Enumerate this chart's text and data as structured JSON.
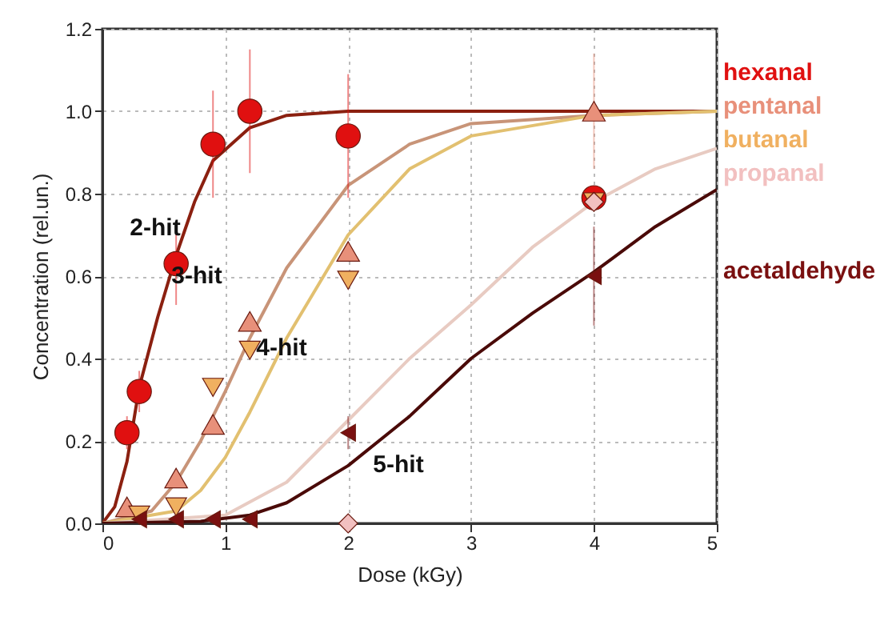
{
  "chart_data": {
    "type": "scatter",
    "xlabel": "Dose (kGy)",
    "ylabel": "Concentration (rel.un.)",
    "xlim": [
      0,
      5
    ],
    "ylim": [
      0,
      1.2
    ],
    "xticks": [
      0,
      1,
      2,
      3,
      4,
      5
    ],
    "yticks": [
      {
        "value": 0,
        "label": "0.0"
      },
      {
        "value": 0.2,
        "label": "0.2"
      },
      {
        "value": 0.4,
        "label": "0.4"
      },
      {
        "value": 0.6,
        "label": "0.6"
      },
      {
        "value": 0.8,
        "label": "0.8"
      },
      {
        "value": 1,
        "label": "1.0"
      },
      {
        "value": 1.2,
        "label": "1.2"
      }
    ],
    "grid": true,
    "annotations": [
      "2-hit",
      "3-hit",
      "4-hit",
      "5-hit"
    ],
    "series": [
      {
        "type": "line",
        "color": "#8b2010",
        "x": [
          0,
          0.1,
          0.2,
          0.3,
          0.45,
          0.6,
          0.75,
          0.9,
          1.2,
          1.5,
          2,
          3,
          5
        ],
        "values": [
          0,
          0.04,
          0.15,
          0.33,
          0.5,
          0.65,
          0.78,
          0.88,
          0.96,
          0.99,
          1,
          1,
          1
        ]
      },
      {
        "type": "line",
        "color": "#c89478",
        "x": [
          0,
          0.4,
          0.6,
          0.8,
          1,
          1.2,
          1.5,
          2,
          2.5,
          3,
          4,
          5
        ],
        "values": [
          0,
          0.03,
          0.1,
          0.2,
          0.32,
          0.45,
          0.62,
          0.82,
          0.92,
          0.97,
          0.99,
          1
        ]
      },
      {
        "type": "line",
        "color": "#e2c070",
        "x": [
          0,
          0.6,
          0.8,
          1,
          1.2,
          1.5,
          2,
          2.5,
          3,
          4,
          5
        ],
        "values": [
          0,
          0.03,
          0.08,
          0.16,
          0.27,
          0.45,
          0.7,
          0.86,
          0.94,
          0.99,
          1
        ]
      },
      {
        "type": "line",
        "color": "#e8cbc2",
        "x": [
          0,
          1,
          1.5,
          2,
          2.5,
          3,
          3.5,
          4,
          4.5,
          5
        ],
        "values": [
          0,
          0.02,
          0.1,
          0.25,
          0.4,
          0.53,
          0.67,
          0.78,
          0.86,
          0.91
        ]
      },
      {
        "type": "line",
        "color": "#4a0a08",
        "x": [
          0,
          0.8,
          1.2,
          1.5,
          2,
          2.5,
          3,
          3.5,
          4,
          4.5,
          5
        ],
        "values": [
          0,
          0.005,
          0.02,
          0.05,
          0.14,
          0.26,
          0.4,
          0.51,
          0.61,
          0.72,
          0.81
        ]
      },
      {
        "name": "hexanal",
        "color": "#e01010",
        "marker": "circle",
        "x": [
          0.2,
          0.3,
          0.6,
          0.9,
          1.2,
          2,
          4
        ],
        "values": [
          0.22,
          0.32,
          0.63,
          0.92,
          1,
          0.94,
          0.79
        ],
        "errors": [
          [
            0.18,
            0.26
          ],
          [
            0.27,
            0.37
          ],
          [
            0.53,
            0.73
          ],
          [
            0.79,
            1.05
          ],
          [
            0.85,
            1.15
          ],
          [
            0.79,
            1.09
          ],
          null
        ]
      },
      {
        "name": "pentanal",
        "color": "#e8907a",
        "marker": "triangle",
        "x": [
          0.2,
          0.6,
          0.9,
          1.2,
          2,
          4
        ],
        "values": [
          0.04,
          0.11,
          0.24,
          0.49,
          0.66,
          1
        ],
        "errors": [
          null,
          null,
          null,
          null,
          null,
          [
            0.86,
            1.14
          ]
        ]
      },
      {
        "name": "butanal",
        "color": "#f0b060",
        "marker": "triangle-down",
        "x": [
          0.3,
          0.6,
          0.9,
          1.2,
          2,
          4
        ],
        "values": [
          0.02,
          0.04,
          0.33,
          0.42,
          0.59,
          0.78
        ]
      },
      {
        "name": "propanal",
        "color": "#f2c0c0",
        "marker": "diamond",
        "x": [
          2,
          4
        ],
        "values": [
          0,
          0.78
        ]
      },
      {
        "name": "acetaldehyde",
        "color": "#7a1010",
        "marker": "triangle-left",
        "x": [
          0.3,
          0.6,
          0.9,
          1.2,
          2,
          4
        ],
        "values": [
          0.01,
          0.01,
          0.01,
          0.01,
          0.22,
          0.6
        ],
        "errors": [
          null,
          null,
          null,
          null,
          [
            0.18,
            0.26
          ],
          [
            0.48,
            0.72
          ]
        ]
      }
    ]
  }
}
